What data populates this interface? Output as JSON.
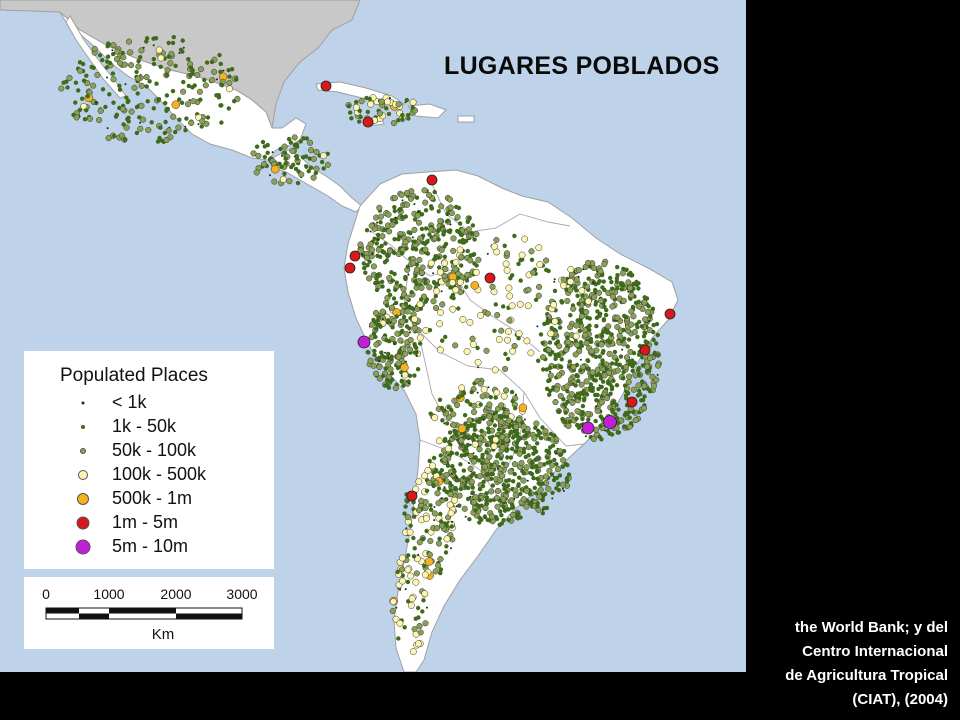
{
  "map": {
    "title": "LUGARES POBLADOS",
    "ocean_color": "#bed2ea",
    "land_color": "#ffffff",
    "other_land_color": "#c8c8c8",
    "border_color": "#a0a0a0"
  },
  "legend": {
    "title": "Populated Places",
    "items": [
      {
        "label": "< 1k",
        "color": "#1e2e12",
        "symbol": "tiny-dot-icon"
      },
      {
        "label": "1k - 50k",
        "color": "#3f6a1c",
        "symbol": "small-dot-icon"
      },
      {
        "label": "50k - 100k",
        "color": "#8aa155",
        "symbol": "medium-dot-icon"
      },
      {
        "label": "100k - 500k",
        "color": "#fdf6b0",
        "symbol": "circle-icon"
      },
      {
        "label": "500k - 1m",
        "color": "#f5b21d",
        "symbol": "circle-icon"
      },
      {
        "label": "1m - 5m",
        "color": "#d7191c",
        "symbol": "circle-icon"
      },
      {
        "label": "5m - 10m",
        "color": "#c21fd8",
        "symbol": "large-circle-icon"
      }
    ]
  },
  "scale_bar": {
    "ticks": [
      "0",
      "1000",
      "2000",
      "3000"
    ],
    "unit": "Km"
  },
  "credit": {
    "lines": [
      "the World Bank; y del",
      "Centro Internacional",
      "de Agricultura Tropical",
      "(CIAT), (2004)"
    ]
  }
}
